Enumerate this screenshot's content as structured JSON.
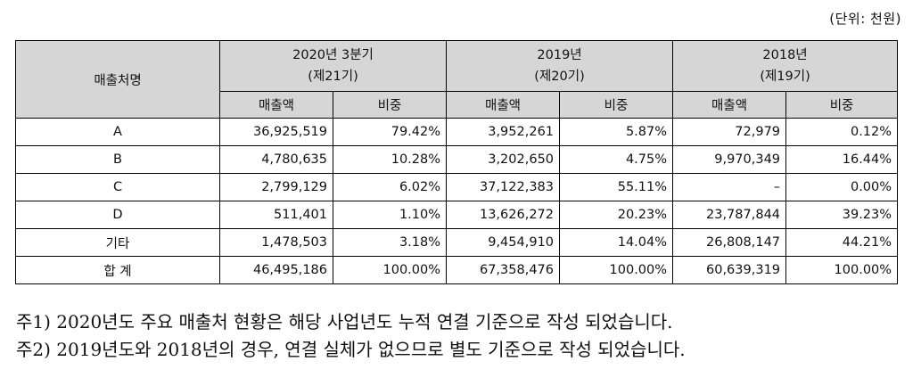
{
  "unit_label": "(단위: 천원)",
  "header": {
    "customer_col": "매출처명",
    "periods": [
      {
        "period": "2020년 3분기",
        "fiscal": "(제21기)"
      },
      {
        "period": "2019년",
        "fiscal": "(제20기)"
      },
      {
        "period": "2018년",
        "fiscal": "(제19기)"
      }
    ],
    "sales_label": "매출액",
    "share_label": "비중"
  },
  "rows": [
    {
      "name": "A",
      "cells": [
        "36,925,519",
        "79.42%",
        "3,952,261",
        "5.87%",
        "72,979",
        "0.12%"
      ]
    },
    {
      "name": "B",
      "cells": [
        "4,780,635",
        "10.28%",
        "3,202,650",
        "4.75%",
        "9,970,349",
        "16.44%"
      ]
    },
    {
      "name": "C",
      "cells": [
        "2,799,129",
        "6.02%",
        "37,122,383",
        "55.11%",
        "–",
        "0.00%"
      ]
    },
    {
      "name": "D",
      "cells": [
        "511,401",
        "1.10%",
        "13,626,272",
        "20.23%",
        "23,787,844",
        "39.23%"
      ]
    },
    {
      "name": "기타",
      "cells": [
        "1,478,503",
        "3.18%",
        "9,454,910",
        "14.04%",
        "26,808,147",
        "44.21%"
      ]
    },
    {
      "name": "합 계",
      "cells": [
        "46,495,186",
        "100.00%",
        "67,358,476",
        "100.00%",
        "60,639,319",
        "100.00%"
      ]
    }
  ],
  "notes": [
    "주1) 2020년도 주요 매출처 현황은 해당 사업년도 누적 연결 기준으로 작성 되었습니다.",
    "주2) 2019년도와 2018년의 경우, 연결 실체가 없으므로 별도 기준으로 작성 되었습니다."
  ]
}
